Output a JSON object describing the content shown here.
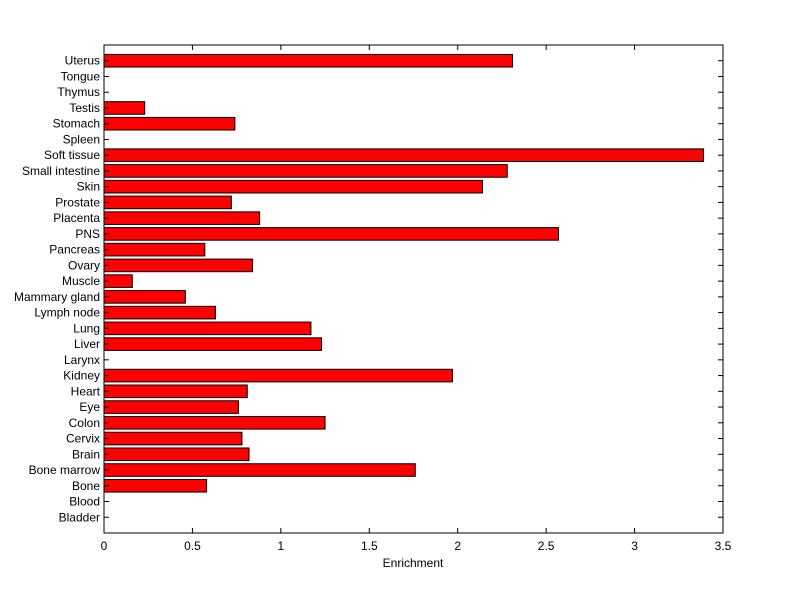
{
  "chart_data": {
    "type": "bar",
    "orientation": "horizontal",
    "categories": [
      "Bladder",
      "Blood",
      "Bone",
      "Bone marrow",
      "Brain",
      "Cervix",
      "Colon",
      "Eye",
      "Heart",
      "Kidney",
      "Larynx",
      "Liver",
      "Lung",
      "Lymph node",
      "Mammary gland",
      "Muscle",
      "Ovary",
      "Pancreas",
      "PNS",
      "Placenta",
      "Prostate",
      "Skin",
      "Small intestine",
      "Soft tissue",
      "Spleen",
      "Stomach",
      "Testis",
      "Thymus",
      "Tongue",
      "Uterus"
    ],
    "values": [
      0,
      0,
      0.58,
      1.76,
      0.82,
      0.78,
      1.25,
      0.76,
      0.81,
      1.97,
      0,
      1.23,
      1.17,
      0.63,
      0.46,
      0.16,
      0.84,
      0.57,
      2.57,
      0.88,
      0.72,
      2.14,
      2.28,
      3.39,
      0,
      0.74,
      0.23,
      0,
      0,
      2.31
    ],
    "xlabel": "Enrichment",
    "ylabel": "",
    "title": "",
    "xlim": [
      0,
      3.5
    ],
    "xticks": [
      "0",
      "0.5",
      "1",
      "1.5",
      "2",
      "2.5",
      "3",
      "3.5"
    ],
    "grid": false,
    "bar_color": "#ff0000"
  }
}
